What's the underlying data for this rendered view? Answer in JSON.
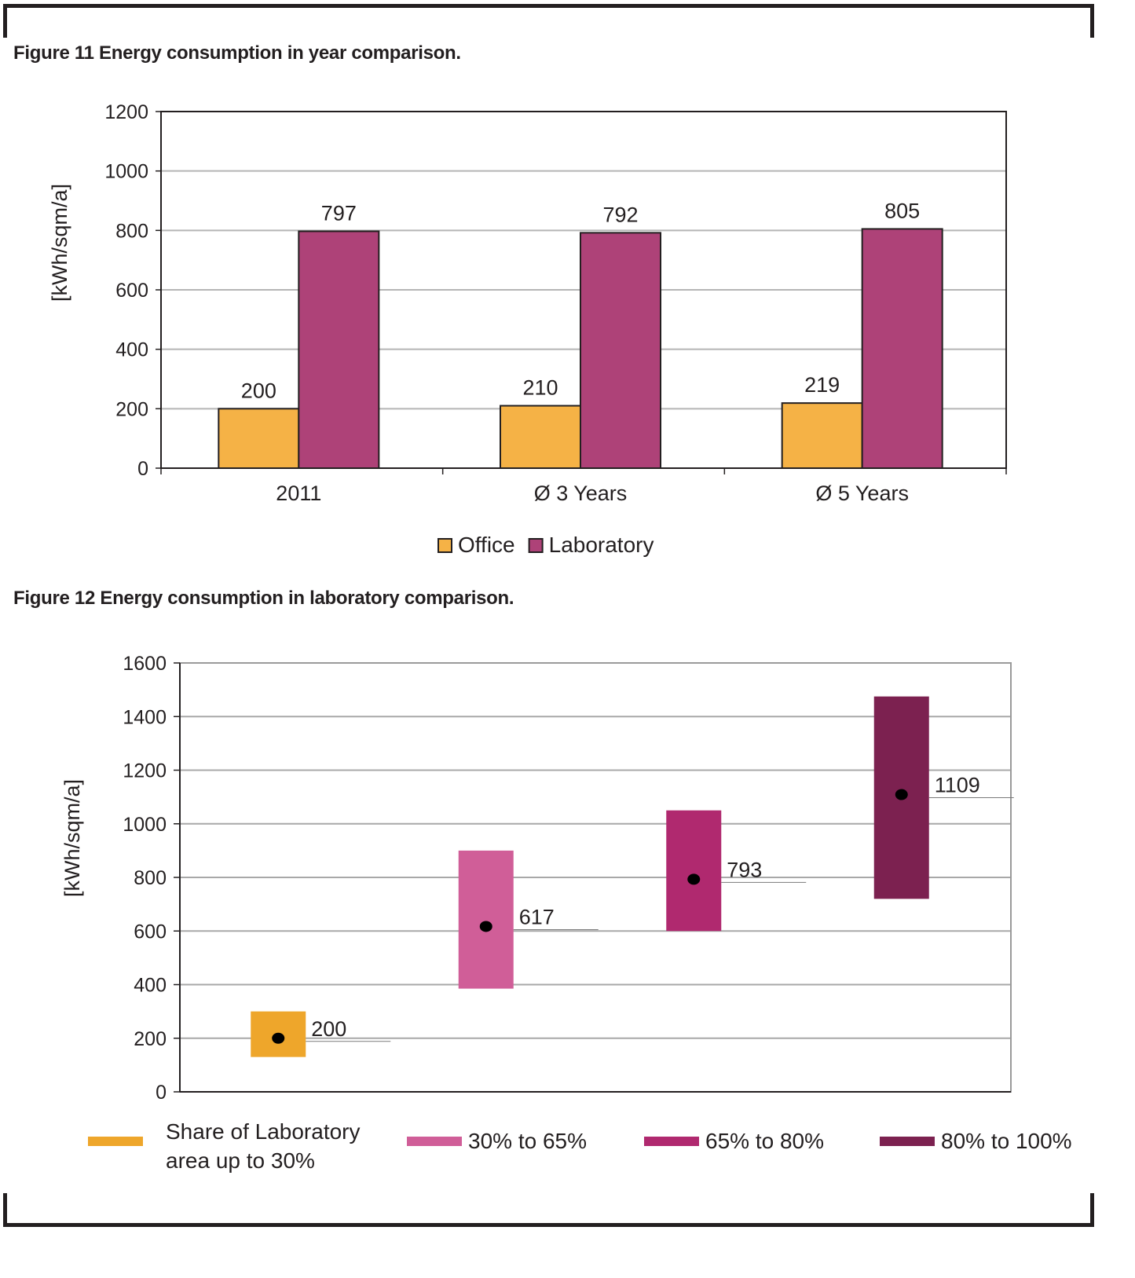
{
  "figure11": {
    "caption": "Figure 11 Energy consumption in year comparison."
  },
  "figure12": {
    "caption": "Figure 12 Energy consumption in laboratory comparison."
  },
  "chart_data": [
    {
      "type": "bar",
      "title": "Figure 11 Energy consumption in year comparison.",
      "ylabel": "[kWh/sqm/a]",
      "xlabel": "",
      "ylim": [
        0,
        1200
      ],
      "yticks": [
        0,
        200,
        400,
        600,
        800,
        1000,
        1200
      ],
      "grid": true,
      "legend_placement": "bottom-center",
      "categories": [
        "2011",
        "Ø 3 Years",
        "Ø 5 Years"
      ],
      "series": [
        {
          "name": "Office",
          "color": "#f5b246",
          "values": [
            200,
            210,
            219
          ]
        },
        {
          "name": "Laboratory",
          "color": "#ae4278",
          "values": [
            797,
            792,
            805
          ]
        }
      ]
    },
    {
      "type": "range",
      "title": "Figure 12 Energy consumption in laboratory comparison.",
      "ylabel": "[kWh/sqm/a]",
      "xlabel": "",
      "ylim": [
        0,
        1600
      ],
      "yticks": [
        0,
        200,
        400,
        600,
        800,
        1000,
        1200,
        1400,
        1600
      ],
      "grid": true,
      "legend_placement": "bottom",
      "series": [
        {
          "name": "Share of Laboratory area up to 30%",
          "name_lines": [
            "Share of Laboratory",
            "area up to 30%"
          ],
          "color": "#eea62b",
          "low": 130,
          "high": 300,
          "value": 200
        },
        {
          "name": "30% to 65%",
          "name_lines": [
            "30% to 65%"
          ],
          "color": "#d05e98",
          "low": 385,
          "high": 900,
          "value": 617
        },
        {
          "name": "65% to 80%",
          "name_lines": [
            "65% to 80%"
          ],
          "color": "#b0296f",
          "low": 600,
          "high": 1050,
          "value": 793
        },
        {
          "name": "80% to 100%",
          "name_lines": [
            "80% to 100%"
          ],
          "color": "#7c2150",
          "low": 720,
          "high": 1475,
          "value": 1109
        }
      ]
    }
  ]
}
